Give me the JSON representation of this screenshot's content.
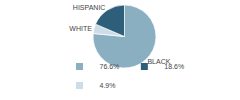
{
  "chart_data": {
    "type": "pie",
    "categories": [
      "BLACK",
      "WHITE",
      "HISPANIC"
    ],
    "values": [
      76.6,
      4.9,
      18.6
    ],
    "colors": [
      "#8aafc0",
      "#ccdde8",
      "#2d5f7a"
    ],
    "series": [
      {
        "name": "76.6%",
        "color": "#8aafc0"
      },
      {
        "name": "18.6%",
        "color": "#2d5f7a"
      },
      {
        "name": "4.9%",
        "color": "#ccdde8"
      }
    ],
    "legend": "bottom"
  }
}
